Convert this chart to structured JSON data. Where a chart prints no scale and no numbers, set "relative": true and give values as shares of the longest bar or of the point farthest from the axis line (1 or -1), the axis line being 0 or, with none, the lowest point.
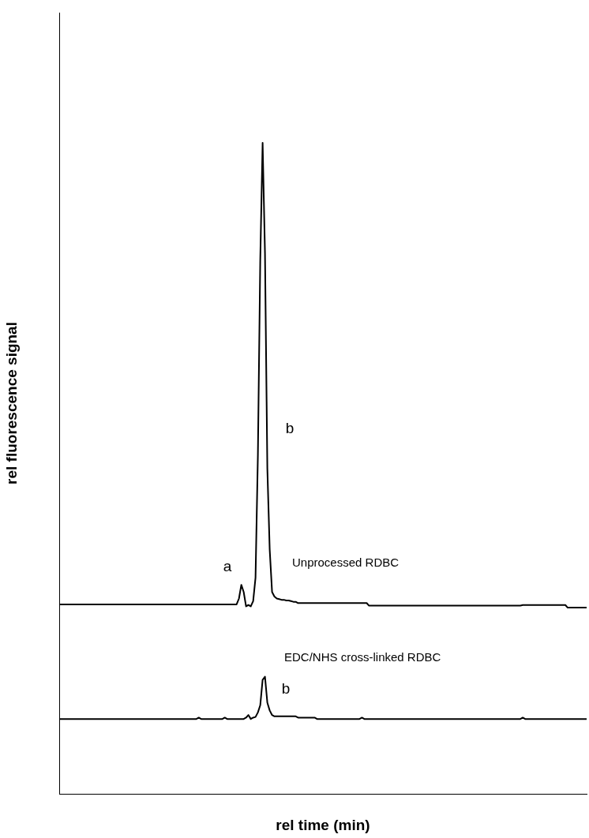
{
  "chart_data": {
    "type": "line",
    "relative": true,
    "xlabel": "rel time (min)",
    "ylabel": "rel fluorescence signal",
    "legend": false,
    "grid": false,
    "marker": "none",
    "line_style": "solid",
    "categories": [
      null,
      null,
      null,
      null,
      null,
      null,
      null,
      null,
      null,
      null,
      null,
      null,
      null,
      null,
      null,
      null,
      null,
      null,
      null,
      null,
      null,
      null,
      null,
      null,
      null,
      null,
      null,
      null,
      null,
      null,
      null,
      null,
      null,
      null,
      null,
      null,
      null,
      null,
      null,
      null,
      null,
      null,
      null,
      null,
      null,
      null,
      null,
      null,
      null,
      null,
      null,
      null,
      null,
      null,
      null,
      null,
      null,
      null,
      null,
      null,
      null,
      null,
      null,
      null,
      null,
      null,
      null,
      null,
      null,
      null,
      null,
      null,
      null,
      null,
      null,
      null,
      null,
      null,
      null,
      null,
      null,
      null,
      null,
      null,
      null,
      null,
      null,
      null,
      null,
      null,
      null,
      null,
      null,
      null,
      null,
      null,
      null,
      null,
      null,
      null,
      null,
      null,
      null,
      null,
      null,
      null,
      null,
      null,
      null,
      null,
      null,
      null,
      null,
      null,
      null,
      null,
      null,
      null,
      null,
      null,
      null,
      null,
      null,
      null,
      null,
      null,
      null,
      null,
      null,
      null,
      null,
      null,
      null,
      null,
      null,
      null,
      null,
      null,
      null,
      null,
      null,
      null,
      null,
      null,
      null,
      null,
      null,
      null,
      null,
      null,
      null,
      null,
      null,
      null,
      null,
      null,
      null,
      null,
      null,
      null,
      null,
      null,
      null,
      null,
      null,
      null,
      null,
      null,
      null,
      null,
      null,
      null,
      null,
      null,
      null,
      null,
      null,
      null,
      null,
      null,
      null,
      null,
      null,
      null,
      null,
      null,
      null,
      null,
      null,
      null,
      null,
      null,
      null,
      null,
      null,
      null,
      null,
      null,
      null,
      null,
      null,
      null,
      null,
      null,
      null,
      null,
      null,
      null,
      null,
      null,
      null,
      null,
      null,
      null,
      null,
      null,
      null,
      null,
      null,
      null,
      null,
      null,
      null,
      null
    ],
    "series": [
      {
        "name": "Unprocessed RDBC",
        "color": "#000000",
        "values": [
          0.291,
          0.291,
          0.291,
          0.291,
          0.291,
          0.291,
          0.291,
          0.291,
          0.291,
          0.291,
          0.291,
          0.291,
          0.291,
          0.291,
          0.291,
          0.291,
          0.291,
          0.291,
          0.291,
          0.291,
          0.291,
          0.291,
          0.291,
          0.291,
          0.291,
          0.291,
          0.291,
          0.291,
          0.291,
          0.291,
          0.291,
          0.291,
          0.291,
          0.291,
          0.291,
          0.291,
          0.291,
          0.291,
          0.291,
          0.291,
          0.291,
          0.291,
          0.291,
          0.291,
          0.291,
          0.291,
          0.291,
          0.291,
          0.291,
          0.291,
          0.291,
          0.291,
          0.291,
          0.291,
          0.291,
          0.291,
          0.291,
          0.291,
          0.291,
          0.291,
          0.291,
          0.291,
          0.291,
          0.291,
          0.291,
          0.291,
          0.291,
          0.291,
          0.291,
          0.291,
          0.291,
          0.291,
          0.291,
          0.291,
          0.291,
          0.291,
          0.3,
          0.321,
          0.31,
          0.288,
          0.29,
          0.288,
          0.296,
          0.332,
          0.52,
          0.819,
          1,
          0.83,
          0.5,
          0.375,
          0.31,
          0.303,
          0.3,
          0.299,
          0.298,
          0.298,
          0.297,
          0.297,
          0.296,
          0.295,
          0.295,
          0.293,
          0.293,
          0.293,
          0.293,
          0.293,
          0.293,
          0.293,
          0.293,
          0.293,
          0.293,
          0.293,
          0.293,
          0.293,
          0.293,
          0.293,
          0.293,
          0.293,
          0.293,
          0.293,
          0.293,
          0.293,
          0.293,
          0.293,
          0.293,
          0.293,
          0.293,
          0.293,
          0.293,
          0.293,
          0.293,
          0.289,
          0.289,
          0.289,
          0.289,
          0.289,
          0.289,
          0.289,
          0.289,
          0.289,
          0.289,
          0.289,
          0.289,
          0.289,
          0.289,
          0.289,
          0.289,
          0.289,
          0.289,
          0.289,
          0.289,
          0.289,
          0.289,
          0.289,
          0.289,
          0.289,
          0.289,
          0.289,
          0.289,
          0.289,
          0.289,
          0.289,
          0.289,
          0.289,
          0.289,
          0.289,
          0.289,
          0.289,
          0.289,
          0.289,
          0.289,
          0.289,
          0.289,
          0.289,
          0.289,
          0.289,
          0.289,
          0.289,
          0.289,
          0.289,
          0.289,
          0.289,
          0.289,
          0.289,
          0.289,
          0.289,
          0.289,
          0.289,
          0.289,
          0.289,
          0.289,
          0.289,
          0.289,
          0.289,
          0.289,
          0.289,
          0.29,
          0.29,
          0.29,
          0.29,
          0.29,
          0.29,
          0.29,
          0.29,
          0.29,
          0.29,
          0.29,
          0.29,
          0.29,
          0.29,
          0.29,
          0.29,
          0.29,
          0.29,
          0.29,
          0.286,
          0.286,
          0.286,
          0.286,
          0.286,
          0.286,
          0.286,
          0.286,
          0.286
        ]
      },
      {
        "name": "EDC/NHS cross-linked RDBC",
        "color": "#000000",
        "values": [
          0.115,
          0.115,
          0.115,
          0.115,
          0.115,
          0.115,
          0.115,
          0.115,
          0.115,
          0.115,
          0.115,
          0.115,
          0.115,
          0.115,
          0.115,
          0.115,
          0.115,
          0.115,
          0.115,
          0.115,
          0.115,
          0.115,
          0.115,
          0.115,
          0.115,
          0.115,
          0.115,
          0.115,
          0.115,
          0.115,
          0.115,
          0.115,
          0.115,
          0.115,
          0.115,
          0.115,
          0.115,
          0.115,
          0.115,
          0.115,
          0.115,
          0.115,
          0.115,
          0.115,
          0.115,
          0.115,
          0.115,
          0.115,
          0.115,
          0.115,
          0.115,
          0.115,
          0.115,
          0.115,
          0.115,
          0.115,
          0.115,
          0.115,
          0.115,
          0.117,
          0.115,
          0.115,
          0.115,
          0.115,
          0.115,
          0.115,
          0.115,
          0.115,
          0.115,
          0.115,
          0.117,
          0.115,
          0.115,
          0.115,
          0.115,
          0.115,
          0.115,
          0.115,
          0.115,
          0.117,
          0.121,
          0.115,
          0.117,
          0.118,
          0.125,
          0.136,
          0.175,
          0.18,
          0.14,
          0.128,
          0.121,
          0.119,
          0.119,
          0.119,
          0.119,
          0.119,
          0.119,
          0.119,
          0.119,
          0.119,
          0.119,
          0.117,
          0.117,
          0.117,
          0.117,
          0.117,
          0.117,
          0.117,
          0.117,
          0.115,
          0.115,
          0.115,
          0.115,
          0.115,
          0.115,
          0.115,
          0.115,
          0.115,
          0.115,
          0.115,
          0.115,
          0.115,
          0.115,
          0.115,
          0.115,
          0.115,
          0.115,
          0.115,
          0.117,
          0.115,
          0.115,
          0.115,
          0.115,
          0.115,
          0.115,
          0.115,
          0.115,
          0.115,
          0.115,
          0.115,
          0.115,
          0.115,
          0.115,
          0.115,
          0.115,
          0.115,
          0.115,
          0.115,
          0.115,
          0.115,
          0.115,
          0.115,
          0.115,
          0.115,
          0.115,
          0.115,
          0.115,
          0.115,
          0.115,
          0.115,
          0.115,
          0.115,
          0.115,
          0.115,
          0.115,
          0.115,
          0.115,
          0.115,
          0.115,
          0.115,
          0.115,
          0.115,
          0.115,
          0.115,
          0.115,
          0.115,
          0.115,
          0.115,
          0.115,
          0.115,
          0.115,
          0.115,
          0.115,
          0.115,
          0.115,
          0.115,
          0.115,
          0.115,
          0.115,
          0.115,
          0.115,
          0.115,
          0.115,
          0.115,
          0.115,
          0.115,
          0.117,
          0.115,
          0.115,
          0.115,
          0.115,
          0.115,
          0.115,
          0.115,
          0.115,
          0.115,
          0.115,
          0.115,
          0.115,
          0.115,
          0.115,
          0.115,
          0.115,
          0.115,
          0.115,
          0.115,
          0.115,
          0.115,
          0.115,
          0.115,
          0.115,
          0.115,
          0.115,
          0.115
        ]
      }
    ],
    "annotations": [
      "a",
      "b",
      "b"
    ]
  }
}
